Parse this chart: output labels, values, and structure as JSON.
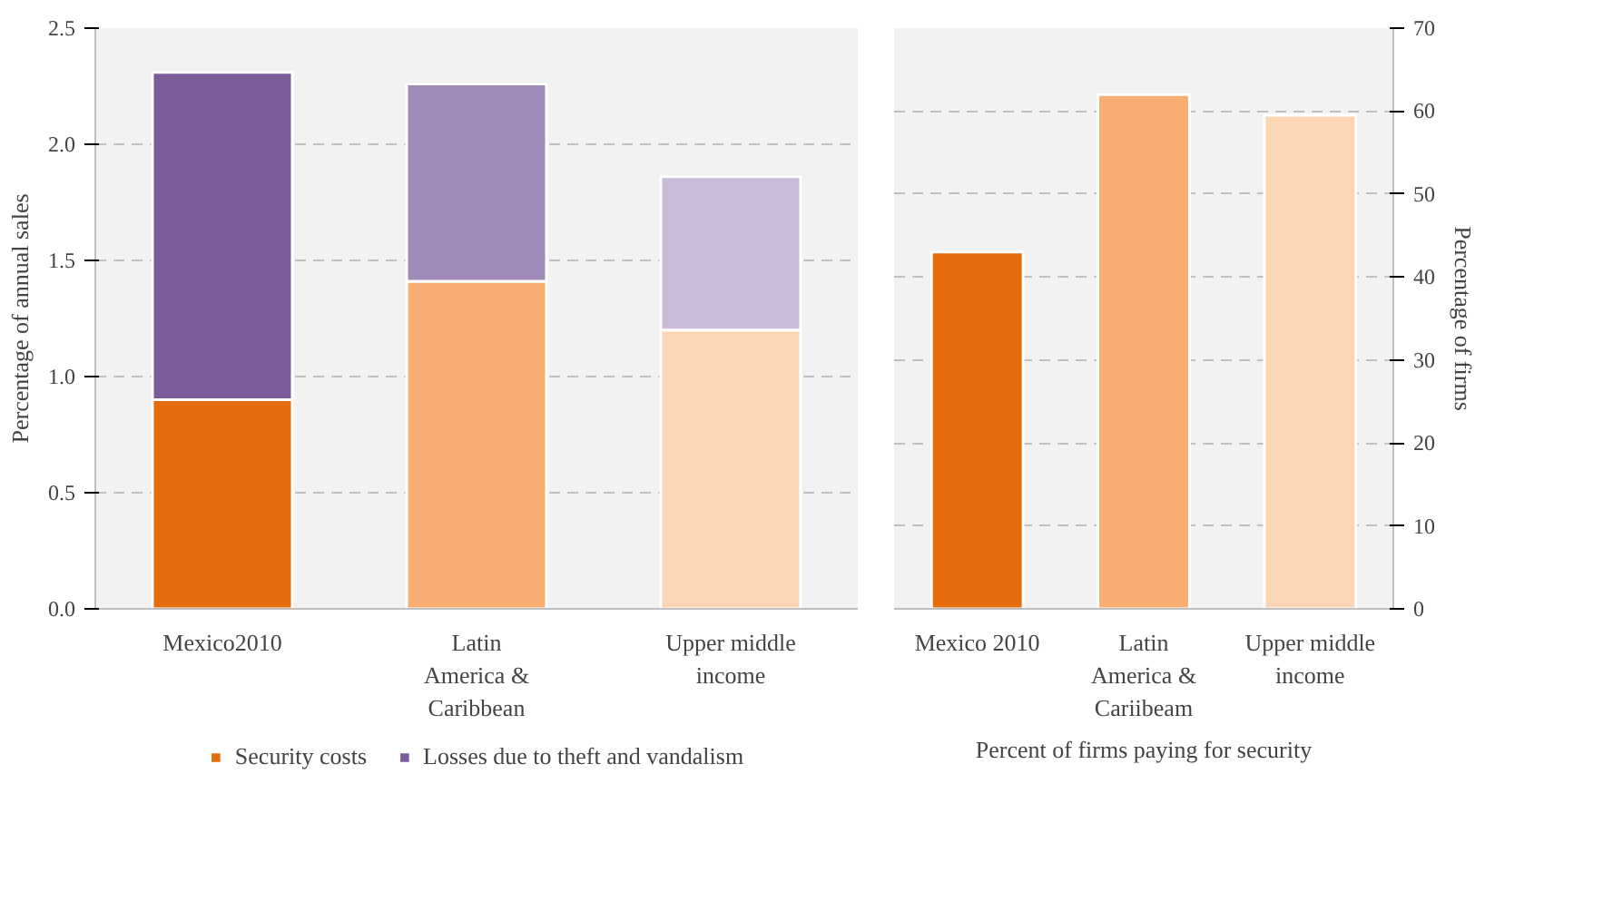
{
  "chart_data": [
    {
      "type": "bar",
      "stacked": true,
      "ylabel": "Percentage of annual sales",
      "categories": [
        "Mexico2010",
        "Latin America & Caribbean",
        "Upper middle income"
      ],
      "ylim": [
        0,
        2.5
      ],
      "yticks": [
        {
          "value": 0,
          "label": "0.0"
        },
        {
          "value": 0.5,
          "label": "0.5"
        },
        {
          "value": 1,
          "label": "1.0"
        },
        {
          "value": 1.5,
          "label": "1.5"
        },
        {
          "value": 2,
          "label": "2.0"
        },
        {
          "value": 2.5,
          "label": "2.5"
        }
      ],
      "grid": "y",
      "legend": "bottom",
      "series": [
        {
          "name": "Security costs",
          "color": "#e46c0a",
          "colors": [
            "#e46c0a",
            "#f8ae72",
            "#fcd5b5"
          ],
          "values": [
            0.9,
            1.41,
            1.2
          ]
        },
        {
          "name": "Losses due to theft and vandalism",
          "color": "#7b5c9b",
          "colors": [
            "#7b5c9b",
            "#a08ab8",
            "#c9bcd9"
          ],
          "values": [
            1.41,
            0.85,
            0.66
          ]
        }
      ]
    },
    {
      "type": "bar",
      "xlabel": "Percent of firms paying for security",
      "y2label": "Percentage of firms",
      "categories": [
        "Mexico 2010",
        "Latin America & Cariibeam",
        "Upper middle income"
      ],
      "y2lim": [
        0,
        70
      ],
      "y2ticks": [
        0,
        10,
        20,
        30,
        40,
        50,
        60,
        70
      ],
      "grid": "y",
      "series": [
        {
          "axis": "y2",
          "colors": [
            "#e46c0a",
            "#f8ae72",
            "#fcd5b5"
          ],
          "values": [
            43,
            62,
            59.5
          ]
        }
      ]
    }
  ]
}
